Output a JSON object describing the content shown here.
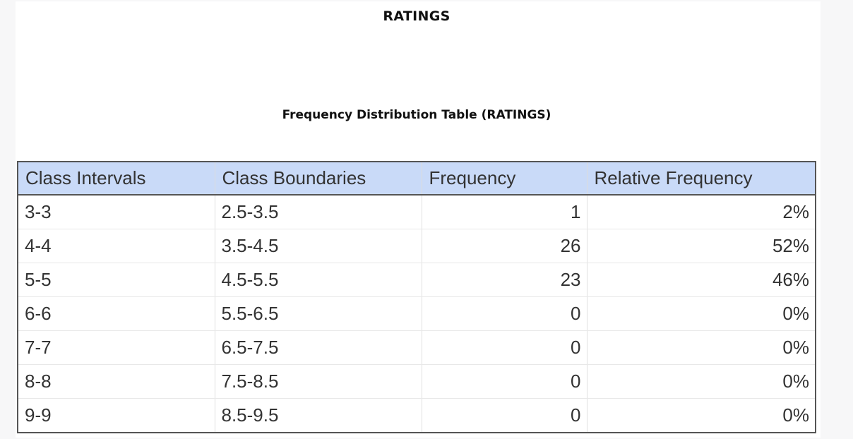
{
  "page": {
    "title": "RATINGS",
    "table_title": "Frequency Distribution Table (RATINGS)"
  },
  "table": {
    "headers": [
      "Class Intervals",
      "Class Boundaries",
      "Frequency",
      "Relative Frequency"
    ],
    "rows": [
      [
        "3-3",
        "2.5-3.5",
        "1",
        "2%"
      ],
      [
        "4-4",
        "3.5-4.5",
        "26",
        "52%"
      ],
      [
        "5-5",
        "4.5-5.5",
        "23",
        "46%"
      ],
      [
        "6-6",
        "5.5-6.5",
        "0",
        "0%"
      ],
      [
        "7-7",
        "6.5-7.5",
        "0",
        "0%"
      ],
      [
        "8-8",
        "7.5-8.5",
        "0",
        "0%"
      ],
      [
        "9-9",
        "8.5-9.5",
        "0",
        "0%"
      ]
    ]
  },
  "colors": {
    "header_background": "#c9daf8",
    "border": "#555555"
  }
}
